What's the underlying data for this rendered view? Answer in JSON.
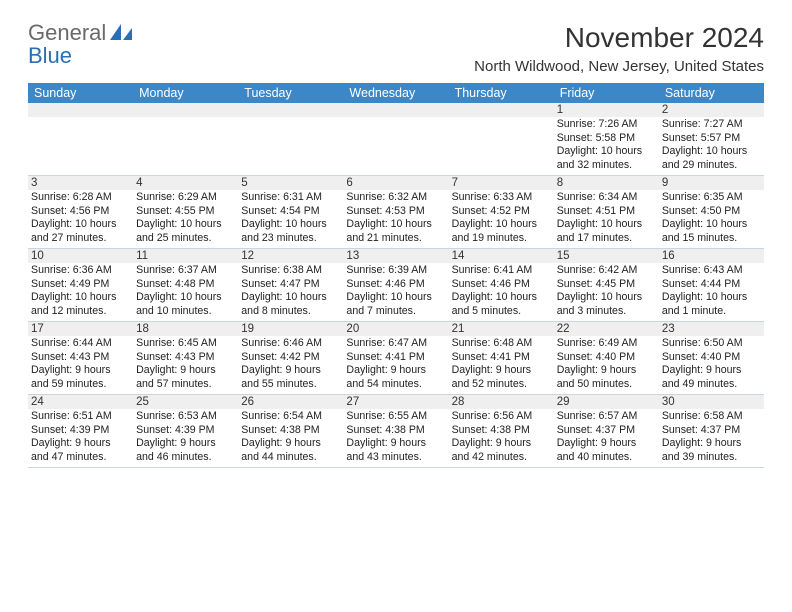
{
  "brand": {
    "general": "General",
    "blue": "Blue"
  },
  "title": "November 2024",
  "subtitle": "North Wildwood, New Jersey, United States",
  "colors": {
    "header_bg": "#3c87c7",
    "header_text": "#ffffff",
    "daynum_bg": "#efefef",
    "rule": "#c7d6e4",
    "brand_gray": "#6a6a6a",
    "brand_blue": "#2a6fb6"
  },
  "dow": [
    "Sunday",
    "Monday",
    "Tuesday",
    "Wednesday",
    "Thursday",
    "Friday",
    "Saturday"
  ],
  "weeks": [
    [
      {
        "n": "",
        "sr": "",
        "ss": "",
        "dl1": "",
        "dl2": ""
      },
      {
        "n": "",
        "sr": "",
        "ss": "",
        "dl1": "",
        "dl2": ""
      },
      {
        "n": "",
        "sr": "",
        "ss": "",
        "dl1": "",
        "dl2": ""
      },
      {
        "n": "",
        "sr": "",
        "ss": "",
        "dl1": "",
        "dl2": ""
      },
      {
        "n": "",
        "sr": "",
        "ss": "",
        "dl1": "",
        "dl2": ""
      },
      {
        "n": "1",
        "sr": "Sunrise: 7:26 AM",
        "ss": "Sunset: 5:58 PM",
        "dl1": "Daylight: 10 hours",
        "dl2": "and 32 minutes."
      },
      {
        "n": "2",
        "sr": "Sunrise: 7:27 AM",
        "ss": "Sunset: 5:57 PM",
        "dl1": "Daylight: 10 hours",
        "dl2": "and 29 minutes."
      }
    ],
    [
      {
        "n": "3",
        "sr": "Sunrise: 6:28 AM",
        "ss": "Sunset: 4:56 PM",
        "dl1": "Daylight: 10 hours",
        "dl2": "and 27 minutes."
      },
      {
        "n": "4",
        "sr": "Sunrise: 6:29 AM",
        "ss": "Sunset: 4:55 PM",
        "dl1": "Daylight: 10 hours",
        "dl2": "and 25 minutes."
      },
      {
        "n": "5",
        "sr": "Sunrise: 6:31 AM",
        "ss": "Sunset: 4:54 PM",
        "dl1": "Daylight: 10 hours",
        "dl2": "and 23 minutes."
      },
      {
        "n": "6",
        "sr": "Sunrise: 6:32 AM",
        "ss": "Sunset: 4:53 PM",
        "dl1": "Daylight: 10 hours",
        "dl2": "and 21 minutes."
      },
      {
        "n": "7",
        "sr": "Sunrise: 6:33 AM",
        "ss": "Sunset: 4:52 PM",
        "dl1": "Daylight: 10 hours",
        "dl2": "and 19 minutes."
      },
      {
        "n": "8",
        "sr": "Sunrise: 6:34 AM",
        "ss": "Sunset: 4:51 PM",
        "dl1": "Daylight: 10 hours",
        "dl2": "and 17 minutes."
      },
      {
        "n": "9",
        "sr": "Sunrise: 6:35 AM",
        "ss": "Sunset: 4:50 PM",
        "dl1": "Daylight: 10 hours",
        "dl2": "and 15 minutes."
      }
    ],
    [
      {
        "n": "10",
        "sr": "Sunrise: 6:36 AM",
        "ss": "Sunset: 4:49 PM",
        "dl1": "Daylight: 10 hours",
        "dl2": "and 12 minutes."
      },
      {
        "n": "11",
        "sr": "Sunrise: 6:37 AM",
        "ss": "Sunset: 4:48 PM",
        "dl1": "Daylight: 10 hours",
        "dl2": "and 10 minutes."
      },
      {
        "n": "12",
        "sr": "Sunrise: 6:38 AM",
        "ss": "Sunset: 4:47 PM",
        "dl1": "Daylight: 10 hours",
        "dl2": "and 8 minutes."
      },
      {
        "n": "13",
        "sr": "Sunrise: 6:39 AM",
        "ss": "Sunset: 4:46 PM",
        "dl1": "Daylight: 10 hours",
        "dl2": "and 7 minutes."
      },
      {
        "n": "14",
        "sr": "Sunrise: 6:41 AM",
        "ss": "Sunset: 4:46 PM",
        "dl1": "Daylight: 10 hours",
        "dl2": "and 5 minutes."
      },
      {
        "n": "15",
        "sr": "Sunrise: 6:42 AM",
        "ss": "Sunset: 4:45 PM",
        "dl1": "Daylight: 10 hours",
        "dl2": "and 3 minutes."
      },
      {
        "n": "16",
        "sr": "Sunrise: 6:43 AM",
        "ss": "Sunset: 4:44 PM",
        "dl1": "Daylight: 10 hours",
        "dl2": "and 1 minute."
      }
    ],
    [
      {
        "n": "17",
        "sr": "Sunrise: 6:44 AM",
        "ss": "Sunset: 4:43 PM",
        "dl1": "Daylight: 9 hours",
        "dl2": "and 59 minutes."
      },
      {
        "n": "18",
        "sr": "Sunrise: 6:45 AM",
        "ss": "Sunset: 4:43 PM",
        "dl1": "Daylight: 9 hours",
        "dl2": "and 57 minutes."
      },
      {
        "n": "19",
        "sr": "Sunrise: 6:46 AM",
        "ss": "Sunset: 4:42 PM",
        "dl1": "Daylight: 9 hours",
        "dl2": "and 55 minutes."
      },
      {
        "n": "20",
        "sr": "Sunrise: 6:47 AM",
        "ss": "Sunset: 4:41 PM",
        "dl1": "Daylight: 9 hours",
        "dl2": "and 54 minutes."
      },
      {
        "n": "21",
        "sr": "Sunrise: 6:48 AM",
        "ss": "Sunset: 4:41 PM",
        "dl1": "Daylight: 9 hours",
        "dl2": "and 52 minutes."
      },
      {
        "n": "22",
        "sr": "Sunrise: 6:49 AM",
        "ss": "Sunset: 4:40 PM",
        "dl1": "Daylight: 9 hours",
        "dl2": "and 50 minutes."
      },
      {
        "n": "23",
        "sr": "Sunrise: 6:50 AM",
        "ss": "Sunset: 4:40 PM",
        "dl1": "Daylight: 9 hours",
        "dl2": "and 49 minutes."
      }
    ],
    [
      {
        "n": "24",
        "sr": "Sunrise: 6:51 AM",
        "ss": "Sunset: 4:39 PM",
        "dl1": "Daylight: 9 hours",
        "dl2": "and 47 minutes."
      },
      {
        "n": "25",
        "sr": "Sunrise: 6:53 AM",
        "ss": "Sunset: 4:39 PM",
        "dl1": "Daylight: 9 hours",
        "dl2": "and 46 minutes."
      },
      {
        "n": "26",
        "sr": "Sunrise: 6:54 AM",
        "ss": "Sunset: 4:38 PM",
        "dl1": "Daylight: 9 hours",
        "dl2": "and 44 minutes."
      },
      {
        "n": "27",
        "sr": "Sunrise: 6:55 AM",
        "ss": "Sunset: 4:38 PM",
        "dl1": "Daylight: 9 hours",
        "dl2": "and 43 minutes."
      },
      {
        "n": "28",
        "sr": "Sunrise: 6:56 AM",
        "ss": "Sunset: 4:38 PM",
        "dl1": "Daylight: 9 hours",
        "dl2": "and 42 minutes."
      },
      {
        "n": "29",
        "sr": "Sunrise: 6:57 AM",
        "ss": "Sunset: 4:37 PM",
        "dl1": "Daylight: 9 hours",
        "dl2": "and 40 minutes."
      },
      {
        "n": "30",
        "sr": "Sunrise: 6:58 AM",
        "ss": "Sunset: 4:37 PM",
        "dl1": "Daylight: 9 hours",
        "dl2": "and 39 minutes."
      }
    ]
  ]
}
